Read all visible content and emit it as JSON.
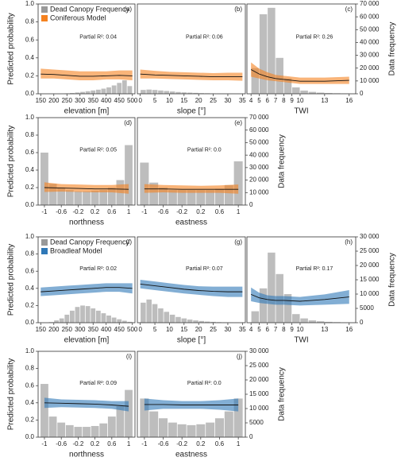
{
  "chart_data": [
    {
      "type": "combo",
      "panel_label": "(a)",
      "annotation": "Partial R²: 0.04",
      "xlabel": "elevation [m]",
      "ylabel": "Predicted probability",
      "legend": [
        {
          "name": "Dead Canopy Frequency",
          "color": "#999999"
        },
        {
          "name": "Coniferous Model",
          "color": "#f58220"
        }
      ],
      "xlim": [
        140,
        510
      ],
      "xticks": [
        150,
        200,
        250,
        300,
        350,
        400,
        450,
        500
      ],
      "ylim": [
        0,
        1
      ],
      "yticks": [
        {
          "value": 0,
          "label": "0.0"
        },
        0.2,
        0.4,
        0.6,
        0.8,
        {
          "value": 1,
          "label": "1.0"
        }
      ],
      "y2lim": [
        0,
        70000
      ],
      "hist": {
        "color": "#999999",
        "axis": "y2",
        "bins": [
          240,
          260,
          280,
          300,
          320,
          340,
          360,
          380,
          400,
          420,
          440,
          460,
          480,
          500
        ],
        "counts": [
          300,
          600,
          1000,
          1500,
          2000,
          2600,
          3200,
          4000,
          5000,
          6500,
          8500,
          10500,
          6000
        ]
      },
      "model": {
        "band_color": "#f58220",
        "line_color": "#111111",
        "x": [
          150,
          200,
          250,
          300,
          350,
          400,
          450,
          500
        ],
        "values": [
          0.22,
          0.215,
          0.205,
          0.195,
          0.195,
          0.2,
          0.205,
          0.2
        ],
        "lower": [
          0.17,
          0.17,
          0.16,
          0.15,
          0.15,
          0.16,
          0.16,
          0.15
        ],
        "upper": [
          0.28,
          0.27,
          0.26,
          0.25,
          0.25,
          0.25,
          0.26,
          0.26
        ]
      }
    },
    {
      "type": "combo",
      "panel_label": "(b)",
      "annotation": "Partial R²: 0.06",
      "xlabel": "slope [°]",
      "xlim": [
        -1,
        36
      ],
      "xticks": [
        0,
        5,
        10,
        15,
        20,
        25,
        30,
        35
      ],
      "ylim": [
        0,
        1
      ],
      "y2lim": [
        0,
        70000
      ],
      "hist": {
        "color": "#999999",
        "axis": "y2",
        "bins": [
          0,
          2,
          4,
          6,
          8,
          10,
          12,
          14,
          16,
          18,
          20,
          22,
          24,
          26,
          28,
          30,
          32,
          34,
          36
        ],
        "counts": [
          3000,
          3300,
          3000,
          2600,
          2200,
          1800,
          1400,
          1100,
          900,
          700,
          500,
          400,
          300,
          200,
          150,
          100,
          60,
          40
        ]
      },
      "model": {
        "band_color": "#f58220",
        "line_color": "#111111",
        "x": [
          0,
          5,
          10,
          15,
          20,
          25,
          30,
          35
        ],
        "values": [
          0.22,
          0.21,
          0.205,
          0.2,
          0.195,
          0.19,
          0.19,
          0.19
        ],
        "lower": [
          0.17,
          0.17,
          0.165,
          0.16,
          0.155,
          0.15,
          0.15,
          0.145
        ],
        "upper": [
          0.27,
          0.255,
          0.245,
          0.24,
          0.235,
          0.23,
          0.235,
          0.235
        ]
      }
    },
    {
      "type": "combo",
      "panel_label": "(c)",
      "annotation": "Partial R²: 0.26",
      "xlabel": "TWI",
      "y2label": "Data frequency",
      "xlim": [
        3.5,
        16.8
      ],
      "xticks": [
        4,
        5,
        6,
        7,
        8,
        9,
        10,
        13,
        16
      ],
      "ylim": [
        0,
        1
      ],
      "y2lim": [
        0,
        70000
      ],
      "y2ticks": [
        0,
        {
          "value": 10000,
          "label": "10 000"
        },
        {
          "value": 20000,
          "label": "20 000"
        },
        {
          "value": 30000,
          "label": "30 000"
        },
        {
          "value": 40000,
          "label": "40 000"
        },
        {
          "value": 50000,
          "label": "50 000"
        },
        {
          "value": 60000,
          "label": "60 000"
        },
        {
          "value": 70000,
          "label": "70 000"
        }
      ],
      "hist": {
        "color": "#999999",
        "axis": "y2",
        "bins": [
          4,
          5,
          6,
          7,
          8,
          9,
          10,
          11,
          12,
          13,
          14,
          15,
          16
        ],
        "counts": [
          20000,
          62000,
          67000,
          28000,
          12000,
          5000,
          2500,
          1500,
          900,
          600,
          400,
          300
        ]
      },
      "model": {
        "band_color": "#f58220",
        "line_color": "#111111",
        "x": [
          4,
          5,
          6,
          7,
          8,
          10,
          13,
          16
        ],
        "values": [
          0.27,
          0.22,
          0.19,
          0.17,
          0.16,
          0.14,
          0.14,
          0.15
        ],
        "lower": [
          0.19,
          0.17,
          0.15,
          0.14,
          0.13,
          0.11,
          0.11,
          0.11
        ],
        "upper": [
          0.35,
          0.28,
          0.24,
          0.21,
          0.2,
          0.18,
          0.18,
          0.19
        ]
      }
    },
    {
      "type": "combo",
      "panel_label": "(d)",
      "annotation": "Partial R²: 0.05",
      "xlabel": "northness",
      "ylabel": "Predicted probability",
      "xlim": [
        -1.15,
        1.15
      ],
      "xticks": [
        -1,
        -0.6,
        -0.2,
        0.2,
        0.6,
        1
      ],
      "ylim": [
        0,
        1
      ],
      "yticks": [
        {
          "value": 0,
          "label": "0.0"
        },
        0.2,
        0.4,
        0.6,
        0.8,
        {
          "value": 1,
          "label": "1.0"
        }
      ],
      "y2lim": [
        0,
        70000
      ],
      "hist": {
        "color": "#999999",
        "axis": "y2",
        "bins": [
          -1.1,
          -0.9,
          -0.7,
          -0.5,
          -0.3,
          -0.1,
          0.1,
          0.3,
          0.5,
          0.7,
          0.9,
          1.1
        ],
        "counts": [
          42000,
          17000,
          14000,
          12000,
          11000,
          11000,
          11500,
          12000,
          14000,
          20000,
          48000
        ]
      },
      "model": {
        "band_color": "#f58220",
        "line_color": "#111111",
        "x": [
          -1,
          -0.6,
          -0.2,
          0.2,
          0.6,
          1
        ],
        "values": [
          0.2,
          0.195,
          0.19,
          0.185,
          0.185,
          0.18
        ],
        "lower": [
          0.15,
          0.155,
          0.15,
          0.145,
          0.145,
          0.13
        ],
        "upper": [
          0.26,
          0.24,
          0.235,
          0.23,
          0.23,
          0.24
        ]
      }
    },
    {
      "type": "combo",
      "panel_label": "(e)",
      "annotation": "Partial R²: 0.0",
      "xlabel": "eastness",
      "y2label": "Data frequency",
      "xlim": [
        -1.15,
        1.15
      ],
      "xticks": [
        -1,
        -0.6,
        -0.2,
        0.2,
        0.6,
        1
      ],
      "ylim": [
        0,
        1
      ],
      "y2lim": [
        0,
        70000
      ],
      "y2ticks": [
        0,
        {
          "value": 10000,
          "label": "10 000"
        },
        {
          "value": 20000,
          "label": "20 000"
        },
        {
          "value": 30000,
          "label": "30 000"
        },
        {
          "value": 40000,
          "label": "40 000"
        },
        {
          "value": 50000,
          "label": "50 000"
        },
        {
          "value": 60000,
          "label": "60 000"
        },
        {
          "value": 70000,
          "label": "70 000"
        }
      ],
      "hist": {
        "color": "#999999",
        "axis": "y2",
        "bins": [
          -1.1,
          -0.9,
          -0.7,
          -0.5,
          -0.3,
          -0.1,
          0.1,
          0.3,
          0.5,
          0.7,
          0.9,
          1.1
        ],
        "counts": [
          34000,
          18000,
          14000,
          12000,
          12000,
          12000,
          12000,
          12000,
          13000,
          16000,
          35000
        ]
      },
      "model": {
        "band_color": "#f58220",
        "line_color": "#111111",
        "x": [
          -1,
          -0.6,
          -0.2,
          0.2,
          0.6,
          1
        ],
        "values": [
          0.185,
          0.185,
          0.18,
          0.18,
          0.18,
          0.18
        ],
        "lower": [
          0.14,
          0.145,
          0.14,
          0.14,
          0.14,
          0.13
        ],
        "upper": [
          0.24,
          0.23,
          0.225,
          0.22,
          0.225,
          0.235
        ]
      }
    },
    {
      "type": "combo",
      "panel_label": "(f)",
      "annotation": "Partial R²: 0.02",
      "xlabel": "elevation [m]",
      "ylabel": "Predicted probability",
      "legend": [
        {
          "name": "Dead Canopy Frequency",
          "color": "#999999"
        },
        {
          "name": "Broadleaf Model",
          "color": "#2f78b7"
        }
      ],
      "xlim": [
        140,
        510
      ],
      "xticks": [
        150,
        200,
        250,
        300,
        350,
        400,
        450,
        500
      ],
      "ylim": [
        0,
        1
      ],
      "yticks": [
        {
          "value": 0,
          "label": "0.0"
        },
        0.2,
        0.4,
        0.6,
        0.8,
        {
          "value": 1,
          "label": "1.0"
        }
      ],
      "y2lim": [
        0,
        30000
      ],
      "hist": {
        "color": "#999999",
        "axis": "y2",
        "bins": [
          180,
          200,
          220,
          240,
          260,
          280,
          300,
          320,
          340,
          360,
          380,
          400,
          420,
          440,
          460,
          480,
          500
        ],
        "counts": [
          200,
          800,
          1500,
          2800,
          4200,
          5500,
          6000,
          5800,
          5000,
          4200,
          3300,
          2500,
          1800,
          1200,
          700,
          300
        ]
      },
      "model": {
        "band_color": "#2f78b7",
        "line_color": "#111111",
        "x": [
          150,
          200,
          250,
          300,
          350,
          400,
          450,
          500
        ],
        "values": [
          0.36,
          0.37,
          0.38,
          0.39,
          0.4,
          0.41,
          0.41,
          0.4
        ],
        "lower": [
          0.31,
          0.32,
          0.33,
          0.34,
          0.35,
          0.36,
          0.36,
          0.34
        ],
        "upper": [
          0.41,
          0.42,
          0.43,
          0.44,
          0.45,
          0.46,
          0.46,
          0.46
        ]
      }
    },
    {
      "type": "combo",
      "panel_label": "(g)",
      "annotation": "Partial R²: 0.07",
      "xlabel": "slope [°]",
      "xlim": [
        -1,
        36
      ],
      "xticks": [
        0,
        5,
        10,
        15,
        20,
        25,
        30,
        35
      ],
      "ylim": [
        0,
        1
      ],
      "y2lim": [
        0,
        30000
      ],
      "hist": {
        "color": "#999999",
        "axis": "y2",
        "bins": [
          0,
          2,
          4,
          6,
          8,
          10,
          12,
          14,
          16,
          18,
          20,
          22,
          24,
          26,
          28,
          30,
          32,
          34,
          36
        ],
        "counts": [
          7000,
          8100,
          6500,
          5000,
          3800,
          2800,
          2000,
          1500,
          1100,
          800,
          600,
          400,
          300,
          200,
          150,
          100,
          60,
          40
        ]
      },
      "model": {
        "band_color": "#2f78b7",
        "line_color": "#111111",
        "x": [
          0,
          5,
          10,
          15,
          20,
          25,
          30,
          35
        ],
        "values": [
          0.45,
          0.43,
          0.41,
          0.39,
          0.375,
          0.365,
          0.36,
          0.36
        ],
        "lower": [
          0.4,
          0.38,
          0.36,
          0.34,
          0.325,
          0.31,
          0.3,
          0.3
        ],
        "upper": [
          0.5,
          0.48,
          0.46,
          0.44,
          0.425,
          0.42,
          0.42,
          0.42
        ]
      }
    },
    {
      "type": "combo",
      "panel_label": "(h)",
      "annotation": "Partial R²: 0.17",
      "xlabel": "TWI",
      "y2label": "Data frequency",
      "xlim": [
        3.5,
        16.8
      ],
      "xticks": [
        4,
        5,
        6,
        7,
        8,
        9,
        10,
        13,
        16
      ],
      "ylim": [
        0,
        1
      ],
      "y2lim": [
        0,
        30000
      ],
      "y2ticks": [
        0,
        5000,
        {
          "value": 10000,
          "label": "10 000"
        },
        {
          "value": 15000,
          "label": "15 000"
        },
        {
          "value": 20000,
          "label": "20 000"
        },
        {
          "value": 25000,
          "label": "25 000"
        },
        {
          "value": 30000,
          "label": "30 000"
        }
      ],
      "hist": {
        "color": "#999999",
        "axis": "y2",
        "bins": [
          4,
          5,
          6,
          7,
          8,
          9,
          10,
          11,
          12,
          13,
          14,
          15,
          16
        ],
        "counts": [
          4000,
          12000,
          24500,
          17000,
          10000,
          3000,
          1500,
          800,
          500,
          300,
          200,
          100
        ]
      },
      "model": {
        "band_color": "#2f78b7",
        "line_color": "#111111",
        "x": [
          4,
          5,
          6,
          7,
          8,
          10,
          13,
          16
        ],
        "values": [
          0.33,
          0.29,
          0.27,
          0.26,
          0.26,
          0.25,
          0.27,
          0.3
        ],
        "lower": [
          0.25,
          0.23,
          0.22,
          0.21,
          0.21,
          0.2,
          0.21,
          0.22
        ],
        "upper": [
          0.41,
          0.35,
          0.32,
          0.31,
          0.31,
          0.3,
          0.33,
          0.38
        ]
      }
    },
    {
      "type": "combo",
      "panel_label": "(i)",
      "annotation": "Partial R²: 0.09",
      "xlabel": "northness",
      "ylabel": "Predicted probability",
      "xlim": [
        -1.15,
        1.15
      ],
      "xticks": [
        -1,
        -0.6,
        -0.2,
        0.2,
        0.6,
        1
      ],
      "ylim": [
        0,
        1
      ],
      "yticks": [
        {
          "value": 0,
          "label": "0.0"
        },
        0.2,
        0.4,
        0.6,
        0.8,
        {
          "value": 1,
          "label": "1.0"
        }
      ],
      "y2lim": [
        0,
        30000
      ],
      "hist": {
        "color": "#999999",
        "axis": "y2",
        "bins": [
          -1.1,
          -0.9,
          -0.7,
          -0.5,
          -0.3,
          -0.1,
          0.1,
          0.3,
          0.5,
          0.7,
          0.9,
          1.1
        ],
        "counts": [
          18600,
          7200,
          5100,
          4200,
          3600,
          3600,
          3900,
          4800,
          7200,
          10800,
          16500
        ]
      },
      "model": {
        "band_color": "#2f78b7",
        "line_color": "#111111",
        "x": [
          -1,
          -0.6,
          -0.2,
          0.2,
          0.6,
          1
        ],
        "values": [
          0.4,
          0.395,
          0.39,
          0.385,
          0.375,
          0.36
        ],
        "lower": [
          0.34,
          0.35,
          0.345,
          0.34,
          0.33,
          0.3
        ],
        "upper": [
          0.46,
          0.44,
          0.435,
          0.43,
          0.42,
          0.42
        ]
      }
    },
    {
      "type": "combo",
      "panel_label": "(j)",
      "annotation": "Partial R²: 0.0",
      "xlabel": "eastness",
      "y2label": "Data frequency",
      "xlim": [
        -1.15,
        1.15
      ],
      "xticks": [
        -1,
        -0.6,
        -0.2,
        0.2,
        0.6,
        1
      ],
      "ylim": [
        0,
        1
      ],
      "y2lim": [
        0,
        30000
      ],
      "y2ticks": [
        0,
        5000,
        {
          "value": 10000,
          "label": "10 000"
        },
        {
          "value": 15000,
          "label": "15 000"
        },
        {
          "value": 20000,
          "label": "20 000"
        },
        {
          "value": 25000,
          "label": "25 000"
        },
        {
          "value": 30000,
          "label": "30 000"
        }
      ],
      "hist": {
        "color": "#999999",
        "axis": "y2",
        "bins": [
          -1.1,
          -0.9,
          -0.7,
          -0.5,
          -0.3,
          -0.1,
          0.1,
          0.3,
          0.5,
          0.7,
          0.9,
          1.1
        ],
        "counts": [
          13500,
          9000,
          6600,
          5100,
          4500,
          4200,
          4500,
          5100,
          6600,
          9000,
          13500
        ]
      },
      "model": {
        "band_color": "#2f78b7",
        "line_color": "#111111",
        "x": [
          -1,
          -0.6,
          -0.2,
          0.2,
          0.6,
          1
        ],
        "values": [
          0.38,
          0.38,
          0.375,
          0.375,
          0.375,
          0.375
        ],
        "lower": [
          0.31,
          0.33,
          0.33,
          0.33,
          0.32,
          0.3
        ],
        "upper": [
          0.45,
          0.43,
          0.42,
          0.42,
          0.43,
          0.45
        ]
      }
    }
  ]
}
